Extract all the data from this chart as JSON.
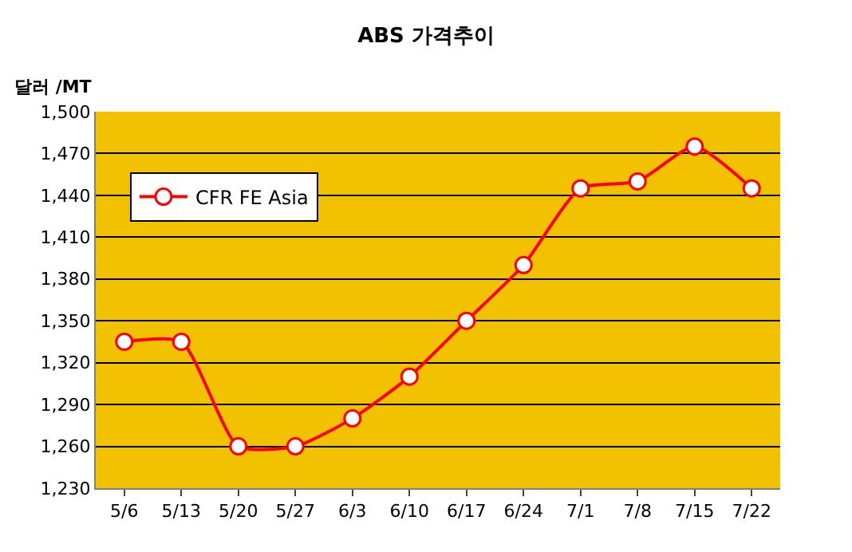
{
  "chart_data": {
    "type": "line",
    "title": "ABS 가격추이",
    "ylabel": "달러 /MT",
    "categories": [
      "5/6",
      "5/13",
      "5/20",
      "5/27",
      "6/3",
      "6/10",
      "6/17",
      "6/24",
      "7/1",
      "7/8",
      "7/15",
      "7/22"
    ],
    "series": [
      {
        "name": "CFR FE Asia",
        "color": "#ff0000",
        "values": [
          1335,
          1335,
          1260,
          1260,
          1280,
          1310,
          1350,
          1390,
          1445,
          1450,
          1475,
          1445
        ]
      }
    ],
    "ylim": [
      1230,
      1500
    ],
    "yticks": [
      {
        "value": 1230,
        "label": "1,230"
      },
      {
        "value": 1260,
        "label": "1,260"
      },
      {
        "value": 1290,
        "label": "1,290"
      },
      {
        "value": 1320,
        "label": "1,320"
      },
      {
        "value": 1350,
        "label": "1,350"
      },
      {
        "value": 1380,
        "label": "1,380"
      },
      {
        "value": 1410,
        "label": "1,410"
      },
      {
        "value": 1440,
        "label": "1,440"
      },
      {
        "value": 1470,
        "label": "1,470"
      },
      {
        "value": 1500,
        "label": "1,500"
      }
    ],
    "grid": "y",
    "legend": "top left",
    "marker": "circle",
    "line_style": "solid"
  }
}
